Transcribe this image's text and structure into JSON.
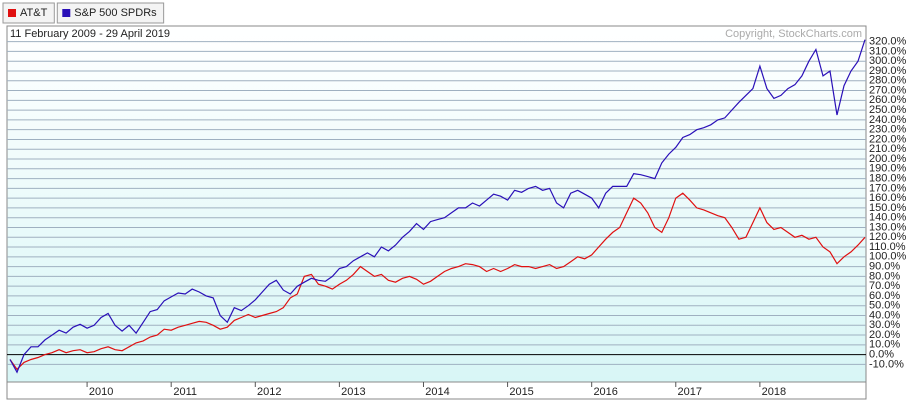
{
  "chart_data": {
    "type": "line",
    "title": "11 February 2009 - 29 April 2019",
    "annotation": "Copyright, StockCharts.com",
    "categories": [
      null,
      null,
      null,
      null,
      null,
      null,
      null,
      null,
      null,
      null,
      null,
      "2010",
      null,
      null,
      null,
      null,
      null,
      null,
      null,
      null,
      null,
      null,
      null,
      "2011",
      null,
      null,
      null,
      null,
      null,
      null,
      null,
      null,
      null,
      null,
      null,
      "2012",
      null,
      null,
      null,
      null,
      null,
      null,
      null,
      null,
      null,
      null,
      null,
      "2013",
      null,
      null,
      null,
      null,
      null,
      null,
      null,
      null,
      null,
      null,
      null,
      "2014",
      null,
      null,
      null,
      null,
      null,
      null,
      null,
      null,
      null,
      null,
      null,
      "2015",
      null,
      null,
      null,
      null,
      null,
      null,
      null,
      null,
      null,
      null,
      null,
      "2016",
      null,
      null,
      null,
      null,
      null,
      null,
      null,
      null,
      null,
      null,
      null,
      "2017",
      null,
      null,
      null,
      null,
      null,
      null,
      null,
      null,
      null,
      null,
      null,
      "2018",
      null,
      null,
      null,
      null,
      null,
      null,
      null,
      null,
      null,
      null,
      null,
      null,
      null,
      null,
      null
    ],
    "series": [
      {
        "name": "AT&T",
        "color": "#e01010",
        "values": [
          -5,
          -15,
          -8,
          -5,
          -3,
          0,
          2,
          5,
          2,
          4,
          5,
          2,
          3,
          6,
          8,
          5,
          4,
          8,
          12,
          14,
          18,
          20,
          26,
          25,
          28,
          30,
          32,
          34,
          33,
          30,
          26,
          28,
          35,
          38,
          41,
          38,
          40,
          42,
          44,
          48,
          58,
          62,
          80,
          82,
          72,
          70,
          67,
          72,
          76,
          82,
          90,
          85,
          80,
          82,
          76,
          74,
          78,
          80,
          77,
          72,
          75,
          80,
          85,
          88,
          90,
          93,
          92,
          90,
          85,
          88,
          85,
          88,
          92,
          90,
          90,
          88,
          90,
          92,
          88,
          90,
          95,
          100,
          98,
          102,
          110,
          118,
          125,
          130,
          145,
          160,
          155,
          145,
          130,
          125,
          140,
          160,
          165,
          158,
          150,
          148,
          145,
          142,
          140,
          130,
          118,
          120,
          135,
          150,
          135,
          128,
          130,
          125,
          120,
          122,
          118,
          120,
          110,
          105,
          93,
          100,
          105,
          112,
          120
        ]
      },
      {
        "name": "S&P 500 SPDRs",
        "color": "#2a10b8",
        "values": [
          -5,
          -18,
          0,
          8,
          8,
          15,
          20,
          25,
          22,
          28,
          31,
          27,
          30,
          38,
          42,
          30,
          24,
          30,
          22,
          33,
          44,
          46,
          55,
          59,
          63,
          62,
          67,
          64,
          60,
          58,
          40,
          33,
          48,
          45,
          50,
          56,
          64,
          72,
          76,
          66,
          62,
          70,
          74,
          78,
          76,
          75,
          80,
          88,
          90,
          96,
          100,
          104,
          100,
          110,
          106,
          112,
          120,
          126,
          134,
          128,
          136,
          138,
          140,
          145,
          150,
          150,
          155,
          152,
          158,
          164,
          162,
          158,
          168,
          166,
          170,
          172,
          168,
          170,
          155,
          150,
          165,
          168,
          164,
          160,
          150,
          165,
          172,
          172,
          172,
          185,
          184,
          182,
          180,
          196,
          205,
          212,
          222,
          225,
          230,
          232,
          235,
          240,
          242,
          250,
          258,
          265,
          272,
          295,
          272,
          262,
          265,
          272,
          276,
          285,
          300,
          312,
          285,
          290,
          245,
          275,
          290,
          300,
          322
        ]
      }
    ],
    "ylim": [
      -28,
      336
    ],
    "yticks": [
      {
        "value": -10,
        "label": "-10.0%"
      },
      {
        "value": 0,
        "label": "0.0%"
      },
      {
        "value": 10,
        "label": "10.0%"
      },
      {
        "value": 20,
        "label": "20.0%"
      },
      {
        "value": 30,
        "label": "30.0%"
      },
      {
        "value": 40,
        "label": "40.0%"
      },
      {
        "value": 50,
        "label": "50.0%"
      },
      {
        "value": 60,
        "label": "60.0%"
      },
      {
        "value": 70,
        "label": "70.0%"
      },
      {
        "value": 80,
        "label": "80.0%"
      },
      {
        "value": 90,
        "label": "90.0%"
      },
      {
        "value": 100,
        "label": "100.0%"
      },
      {
        "value": 110,
        "label": "110.0%"
      },
      {
        "value": 120,
        "label": "120.0%"
      },
      {
        "value": 130,
        "label": "130.0%"
      },
      {
        "value": 140,
        "label": "140.0%"
      },
      {
        "value": 150,
        "label": "150.0%"
      },
      {
        "value": 160,
        "label": "160.0%"
      },
      {
        "value": 170,
        "label": "170.0%"
      },
      {
        "value": 180,
        "label": "180.0%"
      },
      {
        "value": 190,
        "label": "190.0%"
      },
      {
        "value": 200,
        "label": "200.0%"
      },
      {
        "value": 210,
        "label": "210.0%"
      },
      {
        "value": 220,
        "label": "220.0%"
      },
      {
        "value": 230,
        "label": "230.0%"
      },
      {
        "value": 240,
        "label": "240.0%"
      },
      {
        "value": 250,
        "label": "250.0%"
      },
      {
        "value": 260,
        "label": "260.0%"
      },
      {
        "value": 270,
        "label": "270.0%"
      },
      {
        "value": 280,
        "label": "280.0%"
      },
      {
        "value": 290,
        "label": "290.0%"
      },
      {
        "value": 300,
        "label": "300.0%"
      },
      {
        "value": 310,
        "label": "310.0%"
      },
      {
        "value": 320,
        "label": "320.0%"
      }
    ],
    "grid": true,
    "legend": "top-left"
  }
}
